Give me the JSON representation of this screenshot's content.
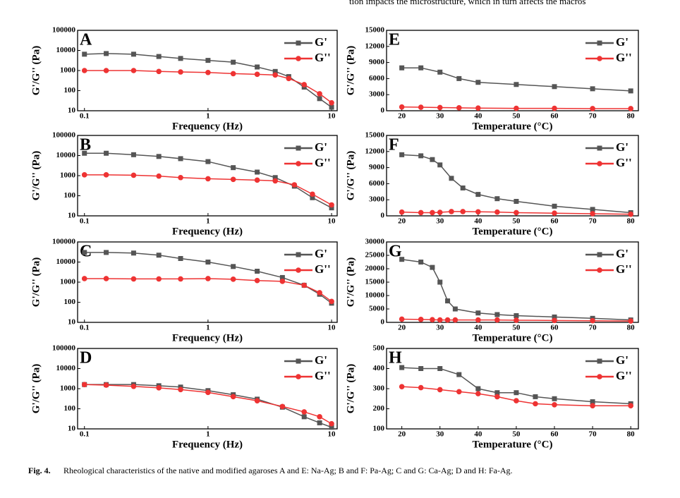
{
  "top_text": "tion impacts the microstructure, which in turn affects the macros",
  "caption_label": "Fig. 4.",
  "caption_text": "Rheological characteristics of the native and modified agaroses A and E: Na-Ag; B and F: Pa-Ag; C and G: Ca-Ag; D and H: Fa-Ag.",
  "chart_data": [
    {
      "type": "line",
      "label": "A",
      "xlabel": "Frequency (Hz)",
      "ylabel": "G'/G'' (Pa)",
      "xscale": "log",
      "yscale": "log",
      "legend": "upper right",
      "x": [
        0.1,
        0.15,
        0.25,
        0.4,
        0.6,
        1,
        1.6,
        2.5,
        3.5,
        4.5,
        6,
        8,
        10
      ],
      "xlim": [
        0.088,
        11.1
      ],
      "xticks": [
        0.1,
        1,
        10
      ],
      "ylim": [
        10,
        100000
      ],
      "yticks": [
        10,
        100,
        1000,
        10000,
        100000
      ],
      "series": [
        {
          "name": "G'",
          "color": "#555555",
          "marker": "square",
          "values": [
            6500,
            7000,
            6500,
            5000,
            4000,
            3200,
            2600,
            1500,
            900,
            500,
            150,
            40,
            15
          ]
        },
        {
          "name": "G''",
          "color": "#ee3333",
          "marker": "circle",
          "values": [
            1000,
            1000,
            1000,
            900,
            850,
            800,
            700,
            650,
            600,
            400,
            200,
            70,
            25
          ]
        }
      ]
    },
    {
      "type": "line",
      "label": "B",
      "xlabel": "Frequency (Hz)",
      "ylabel": "G'/G'' (Pa)",
      "xscale": "log",
      "yscale": "log",
      "legend": "upper right",
      "x": [
        0.1,
        0.15,
        0.25,
        0.4,
        0.6,
        1,
        1.6,
        2.5,
        3.5,
        5,
        7,
        10
      ],
      "xlim": [
        0.088,
        11.1
      ],
      "xticks": [
        0.1,
        1,
        10
      ],
      "ylim": [
        10,
        100000
      ],
      "yticks": [
        10,
        100,
        1000,
        10000,
        100000
      ],
      "series": [
        {
          "name": "G'",
          "color": "#555555",
          "marker": "square",
          "values": [
            13000,
            13000,
            11000,
            9000,
            7000,
            5000,
            2500,
            1500,
            800,
            300,
            80,
            25
          ]
        },
        {
          "name": "G''",
          "color": "#ee3333",
          "marker": "circle",
          "values": [
            1100,
            1100,
            1050,
            950,
            800,
            700,
            650,
            600,
            550,
            350,
            120,
            35
          ]
        }
      ]
    },
    {
      "type": "line",
      "label": "C",
      "xlabel": "Frequency (Hz)",
      "ylabel": "G'/G'' (Pa)",
      "xscale": "log",
      "yscale": "log",
      "legend": "upper right",
      "x": [
        0.1,
        0.15,
        0.25,
        0.4,
        0.6,
        1,
        1.6,
        2.5,
        4,
        6,
        8,
        10
      ],
      "xlim": [
        0.088,
        11.1
      ],
      "xticks": [
        0.1,
        1,
        10
      ],
      "ylim": [
        10,
        100000
      ],
      "yticks": [
        10,
        100,
        1000,
        10000,
        100000
      ],
      "series": [
        {
          "name": "G'",
          "color": "#555555",
          "marker": "square",
          "values": [
            30000,
            30000,
            28000,
            22000,
            15000,
            10000,
            6000,
            3500,
            1700,
            700,
            250,
            90
          ]
        },
        {
          "name": "G''",
          "color": "#ee3333",
          "marker": "circle",
          "values": [
            1500,
            1500,
            1450,
            1450,
            1450,
            1500,
            1400,
            1200,
            1100,
            700,
            300,
            110
          ]
        }
      ]
    },
    {
      "type": "line",
      "label": "D",
      "xlabel": "Frequency (Hz)",
      "ylabel": "G'/G'' (Pa)",
      "xscale": "log",
      "yscale": "log",
      "legend": "upper right",
      "x": [
        0.1,
        0.15,
        0.25,
        0.4,
        0.6,
        1,
        1.6,
        2.5,
        4,
        6,
        8,
        10
      ],
      "xlim": [
        0.088,
        11.1
      ],
      "xticks": [
        0.1,
        1,
        10
      ],
      "ylim": [
        10,
        100000
      ],
      "yticks": [
        10,
        100,
        1000,
        10000,
        100000
      ],
      "series": [
        {
          "name": "G'",
          "color": "#555555",
          "marker": "square",
          "values": [
            1600,
            1600,
            1600,
            1400,
            1200,
            800,
            500,
            300,
            120,
            40,
            20,
            12
          ]
        },
        {
          "name": "G''",
          "color": "#ee3333",
          "marker": "circle",
          "values": [
            1600,
            1500,
            1300,
            1100,
            900,
            650,
            400,
            250,
            130,
            70,
            40,
            18
          ]
        }
      ]
    },
    {
      "type": "line",
      "label": "E",
      "xlabel": "Temperature (°C)",
      "ylabel": "G'/G'' (Pa)",
      "legend": "upper right",
      "x": [
        20,
        25,
        30,
        35,
        40,
        50,
        60,
        70,
        80
      ],
      "xlim": [
        16,
        82
      ],
      "xticks": [
        20,
        30,
        40,
        50,
        60,
        70,
        80
      ],
      "ylim": [
        0,
        15000
      ],
      "yticks": [
        0,
        3000,
        6000,
        9000,
        12000,
        15000
      ],
      "series": [
        {
          "name": "G'",
          "color": "#555555",
          "marker": "square",
          "values": [
            8000,
            8000,
            7200,
            6000,
            5300,
            4900,
            4500,
            4100,
            3700
          ]
        },
        {
          "name": "G''",
          "color": "#ee3333",
          "marker": "circle",
          "values": [
            700,
            650,
            600,
            550,
            500,
            450,
            450,
            400,
            400
          ]
        }
      ]
    },
    {
      "type": "line",
      "label": "F",
      "xlabel": "Temperature (°C)",
      "ylabel": "G'/G'' (Pa)",
      "legend": "upper right",
      "x": [
        20,
        25,
        28,
        30,
        33,
        36,
        40,
        45,
        50,
        60,
        70,
        80
      ],
      "xlim": [
        16,
        82
      ],
      "xticks": [
        20,
        30,
        40,
        50,
        60,
        70,
        80
      ],
      "ylim": [
        0,
        15000
      ],
      "yticks": [
        0,
        3000,
        6000,
        9000,
        12000,
        15000
      ],
      "series": [
        {
          "name": "G'",
          "color": "#555555",
          "marker": "square",
          "values": [
            11400,
            11200,
            10500,
            9500,
            7000,
            5200,
            4000,
            3200,
            2700,
            1800,
            1200,
            600
          ]
        },
        {
          "name": "G''",
          "color": "#ee3333",
          "marker": "circle",
          "values": [
            700,
            600,
            600,
            650,
            800,
            800,
            750,
            700,
            600,
            500,
            400,
            300
          ]
        }
      ]
    },
    {
      "type": "line",
      "label": "G",
      "xlabel": "Temperature (°C)",
      "ylabel": "G'/G'' (Pa)",
      "legend": "upper right",
      "x": [
        20,
        25,
        28,
        30,
        32,
        34,
        40,
        45,
        50,
        60,
        70,
        80
      ],
      "xlim": [
        16,
        82
      ],
      "xticks": [
        20,
        30,
        40,
        50,
        60,
        70,
        80
      ],
      "ylim": [
        0,
        30000
      ],
      "yticks": [
        0,
        5000,
        10000,
        15000,
        20000,
        25000,
        30000
      ],
      "series": [
        {
          "name": "G'",
          "color": "#555555",
          "marker": "square",
          "values": [
            23500,
            22500,
            20500,
            15000,
            8000,
            5000,
            3500,
            2900,
            2500,
            2000,
            1500,
            900
          ]
        },
        {
          "name": "G''",
          "color": "#ee3333",
          "marker": "circle",
          "values": [
            1200,
            1100,
            1000,
            900,
            900,
            900,
            900,
            900,
            800,
            700,
            600,
            500
          ]
        }
      ]
    },
    {
      "type": "line",
      "label": "H",
      "xlabel": "Temperature (°C)",
      "ylabel": "G'/G'' (Pa)",
      "legend": "upper right",
      "x": [
        20,
        25,
        30,
        35,
        40,
        45,
        50,
        55,
        60,
        70,
        80
      ],
      "xlim": [
        16,
        82
      ],
      "xticks": [
        20,
        30,
        40,
        50,
        60,
        70,
        80
      ],
      "ylim": [
        100,
        500
      ],
      "yticks": [
        100,
        200,
        300,
        400,
        500
      ],
      "series": [
        {
          "name": "G'",
          "color": "#555555",
          "marker": "square",
          "values": [
            405,
            400,
            400,
            370,
            300,
            280,
            280,
            260,
            250,
            235,
            225
          ]
        },
        {
          "name": "G''",
          "color": "#ee3333",
          "marker": "circle",
          "values": [
            310,
            305,
            295,
            285,
            275,
            260,
            240,
            225,
            220,
            215,
            215
          ]
        }
      ]
    }
  ]
}
